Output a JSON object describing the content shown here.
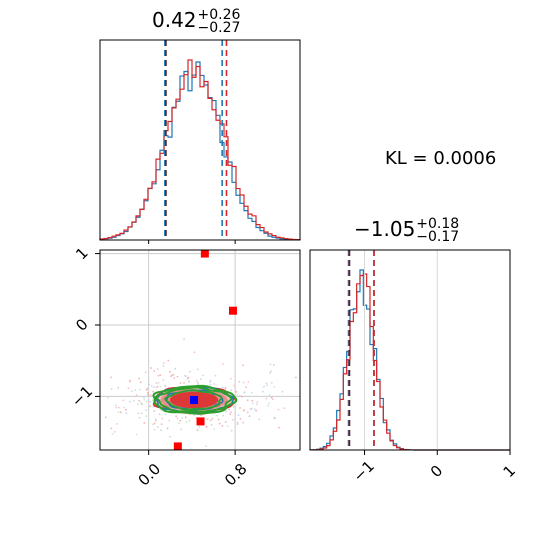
{
  "chart_data": [
    {
      "type": "histogram",
      "panel": "marginal-param-1",
      "title": {
        "value": "0.42",
        "upper": "+0.26",
        "lower": "−0.27"
      },
      "quantile_lines": [
        0.15,
        0.42,
        0.68
      ],
      "series": [
        {
          "color": "#1f77b4",
          "quantiles": [
            0.15,
            0.68
          ]
        },
        {
          "color": "#d62728",
          "quantiles": [
            0.16,
            0.72
          ]
        }
      ],
      "xlim": [
        -0.45,
        1.4
      ],
      "xticks": [
        0.0,
        0.8
      ]
    },
    {
      "type": "histogram",
      "panel": "marginal-param-2",
      "title": {
        "value": "−1.05",
        "upper": "+0.18",
        "lower": "−0.17"
      },
      "quantile_lines": [
        -1.22,
        -1.05,
        -0.87
      ],
      "series": [
        {
          "color": "#1f77b4",
          "quantiles": [
            -1.22,
            -0.87
          ]
        },
        {
          "color": "#d62728",
          "quantiles": [
            -1.21,
            -0.87
          ]
        }
      ],
      "xlim": [
        -1.75,
        1.0
      ],
      "xticks": [
        -1,
        0,
        1
      ],
      "xtick_labels": [
        "−1",
        "0",
        "1"
      ]
    },
    {
      "type": "scatter",
      "panel": "joint-param-1-param-2",
      "xlim": [
        -0.45,
        1.4
      ],
      "ylim": [
        -1.75,
        1.05
      ],
      "xticks": [
        0.0,
        0.8
      ],
      "xtick_labels": [
        "0.0",
        "0.8"
      ],
      "yticks": [
        1,
        0,
        -1
      ],
      "ytick_labels": [
        "1",
        "0",
        "−1"
      ],
      "grid": true,
      "markers": [
        {
          "x": 0.42,
          "y": -1.05,
          "color": "#0000ff"
        },
        {
          "x": 0.78,
          "y": 0.2,
          "color": "#ff0000"
        },
        {
          "x": 0.52,
          "y": 1.0,
          "color": "#ff0000"
        },
        {
          "x": 0.48,
          "y": -1.35,
          "color": "#ff0000"
        },
        {
          "x": 0.27,
          "y": -1.7,
          "color": "#ff0000"
        }
      ],
      "contours": [
        {
          "color": "#d62728",
          "center": [
            0.42,
            -1.05
          ],
          "width": 0.72,
          "height": 0.36,
          "filled": true
        },
        {
          "color": "#1f77b4",
          "center": [
            0.42,
            -1.05
          ],
          "width": 0.72,
          "height": 0.36
        },
        {
          "color": "#2ca02c",
          "center": [
            0.42,
            -1.05
          ],
          "width": 0.74,
          "height": 0.37
        }
      ]
    }
  ],
  "kl_text": "KL = 0.0006",
  "colors": {
    "blue": "#1f77b4",
    "red": "#d62728",
    "green": "#2ca02c",
    "dark": "#333333"
  }
}
